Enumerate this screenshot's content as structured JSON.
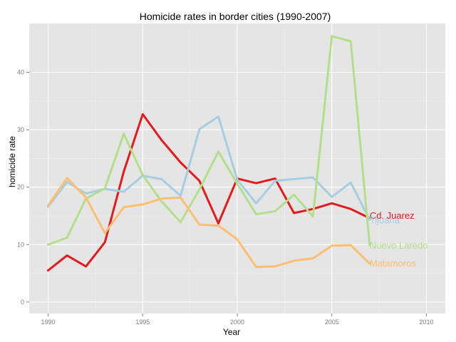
{
  "chart_data": {
    "type": "line",
    "title": "Homicide rates in border cities (1990-2007)",
    "xlabel": "Year",
    "ylabel": "homicide rate",
    "xlim": [
      1989,
      2011
    ],
    "ylim": [
      -2,
      48.5
    ],
    "xticks": [
      1990,
      1995,
      2000,
      2005,
      2010
    ],
    "yticks": [
      0,
      10,
      20,
      30,
      40
    ],
    "grid": true,
    "legend": "direct labels at line ends",
    "panel_background": "#e5e5e5",
    "series": [
      {
        "name": "Cd. Juarez",
        "color": "#e41a1c",
        "x": [
          1990,
          1991,
          1992,
          1993,
          1994,
          1995,
          1996,
          1997,
          1998,
          1999,
          2000,
          2001,
          2002,
          2003,
          2004,
          2005,
          2006,
          2007
        ],
        "values": [
          5.5,
          8.1,
          6.2,
          10.4,
          22.7,
          32.7,
          28.2,
          24.3,
          21.1,
          13.7,
          21.5,
          20.7,
          21.5,
          15.5,
          16.2,
          17.2,
          16.2,
          14.6
        ]
      },
      {
        "name": "Tijuana",
        "color": "#a6cee3",
        "x": [
          1990,
          1991,
          1992,
          1993,
          1994,
          1995,
          1996,
          1997,
          1998,
          1999,
          2000,
          2001,
          2002,
          2003,
          2004,
          2005,
          2006,
          2007
        ],
        "values": [
          16.6,
          20.9,
          18.9,
          19.7,
          19.2,
          22.0,
          21.4,
          18.5,
          30.1,
          32.3,
          21.3,
          17.2,
          21.1,
          21.4,
          21.7,
          18.3,
          20.8,
          14.3
        ]
      },
      {
        "name": "Nuevo Laredo",
        "color": "#b2df8a",
        "x": [
          1990,
          1991,
          1992,
          1993,
          1994,
          1995,
          1996,
          1997,
          1998,
          1999,
          2000,
          2001,
          2002,
          2003,
          2004,
          2005,
          2006,
          2007
        ],
        "values": [
          10.0,
          11.2,
          18.0,
          19.8,
          29.3,
          22.1,
          17.5,
          13.9,
          19.6,
          26.2,
          20.6,
          15.3,
          15.8,
          18.7,
          14.9,
          46.3,
          45.4,
          9.9
        ]
      },
      {
        "name": "Matamoros",
        "color": "#fdbf6f",
        "x": [
          1990,
          1991,
          1992,
          1993,
          1994,
          1995,
          1996,
          1997,
          1998,
          1999,
          2000,
          2001,
          2002,
          2003,
          2004,
          2005,
          2006,
          2007
        ],
        "values": [
          16.8,
          21.6,
          18.2,
          12.0,
          16.5,
          17.0,
          18.0,
          18.2,
          13.5,
          13.3,
          10.9,
          6.1,
          6.2,
          7.2,
          7.6,
          9.8,
          9.9,
          6.7
        ]
      }
    ]
  }
}
